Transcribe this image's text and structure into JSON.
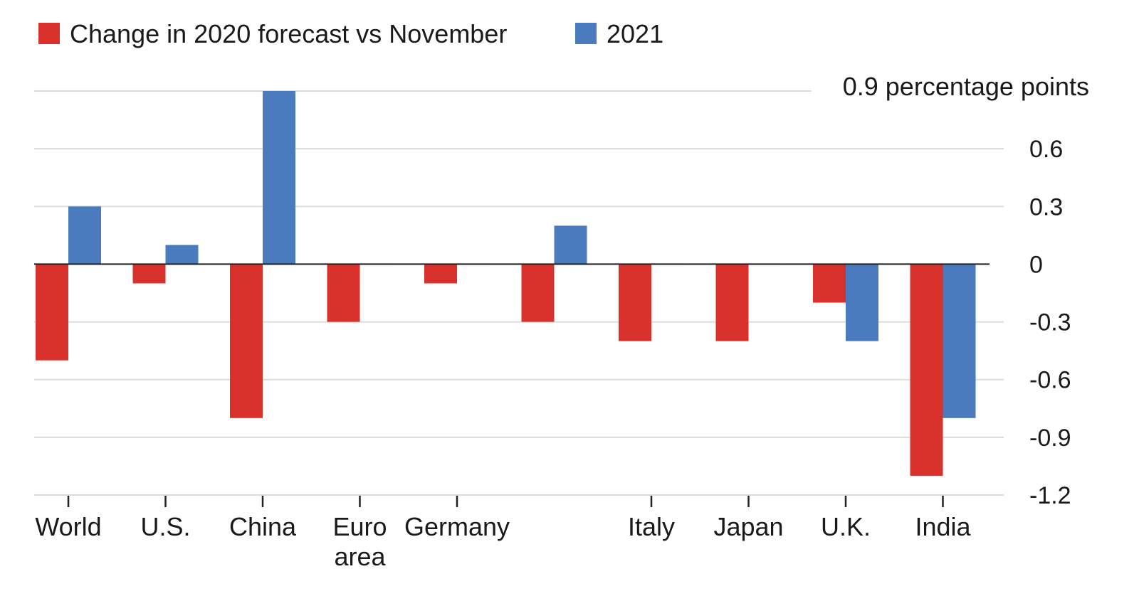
{
  "colors": {
    "series_2020": "#d9312b",
    "series_2021": "#4a7bbf",
    "grid": "#dcdcdc",
    "zero_line": "#222222"
  },
  "chart_data": {
    "type": "bar",
    "title": "",
    "xlabel": "",
    "ylabel": "",
    "unit_label": "0.9 percentage points",
    "categories": [
      [
        "World"
      ],
      [
        "U.S."
      ],
      [
        "China"
      ],
      [
        "Euro",
        "area"
      ],
      [
        "Germany"
      ],
      [
        ""
      ],
      [
        "Italy"
      ],
      [
        "Japan"
      ],
      [
        "U.K."
      ],
      [
        "India"
      ]
    ],
    "series": [
      {
        "name": "Change in 2020 forecast vs November",
        "color": "#d9312b",
        "values": [
          -0.5,
          -0.1,
          -0.8,
          -0.3,
          -0.1,
          -0.3,
          -0.4,
          -0.4,
          -0.2,
          -1.1
        ]
      },
      {
        "name": "2021",
        "color": "#4a7bbf",
        "values": [
          0.3,
          0.1,
          0.9,
          0.0,
          0.0,
          0.2,
          0.0,
          0.0,
          -0.4,
          -0.8
        ]
      }
    ],
    "yticks": [
      0.6,
      0.3,
      0,
      -0.3,
      -0.6,
      -0.9,
      -1.2
    ],
    "ylim": [
      -1.2,
      0.9
    ],
    "grid": true,
    "legend": "top-left"
  }
}
